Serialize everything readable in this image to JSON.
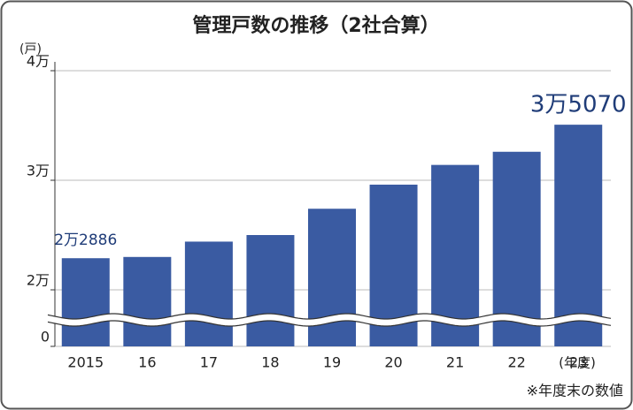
{
  "chart_data": {
    "type": "bar",
    "title": "管理戸数の推移（2社合算）",
    "y_label": "(戸)",
    "x_label": "(年度)",
    "note": "※年度末の数値",
    "categories": [
      "2015",
      "16",
      "17",
      "18",
      "19",
      "20",
      "21",
      "22",
      "23"
    ],
    "values": [
      22886,
      23000,
      24400,
      25000,
      27400,
      29600,
      31400,
      32600,
      35070
    ],
    "value_labels": [
      "2万2886",
      null,
      null,
      null,
      null,
      null,
      null,
      null,
      "3万5070"
    ],
    "color": "#3a5ba2",
    "ylim": [
      0,
      40000
    ],
    "yticks": [
      0,
      {
        "value": 20000,
        "label": "2万"
      },
      {
        "value": 30000,
        "label": "3万"
      },
      {
        "value": 40000,
        "label": "4万"
      }
    ],
    "axis_break": true,
    "grid": true
  }
}
